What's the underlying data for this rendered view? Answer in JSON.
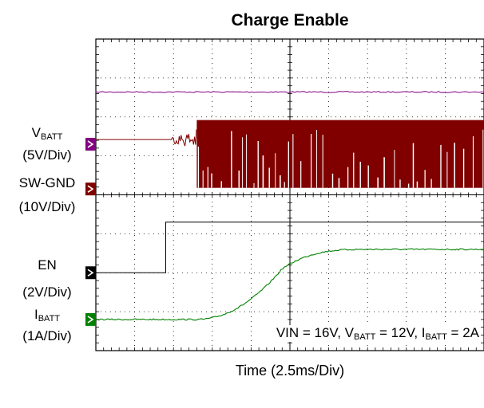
{
  "chart_data": {
    "type": "line",
    "title": "Charge Enable",
    "xlabel": "Time (2.5ms/Div)",
    "x_divisions": 10,
    "y_divisions": 8,
    "grid": true,
    "channels": [
      {
        "name_main": "V",
        "name_sub": "BATT",
        "scale": "(5V/Div)",
        "color": "#800080"
      },
      {
        "name_main": "SW-GND",
        "name_sub": "",
        "scale": "(10V/Div)",
        "color": "#800000"
      },
      {
        "name_main": "EN",
        "name_sub": "",
        "scale": "(2V/Div)",
        "color": "#000000"
      },
      {
        "name_main": "I",
        "name_sub": "BATT",
        "scale": "(1A/Div)",
        "color": "#008000"
      }
    ],
    "annotation": {
      "p1": "VIN = 16V, V",
      "s1": "BATT",
      "p2": " = 12V, I",
      "s2": "BATT",
      "p3": " = 2A"
    }
  }
}
